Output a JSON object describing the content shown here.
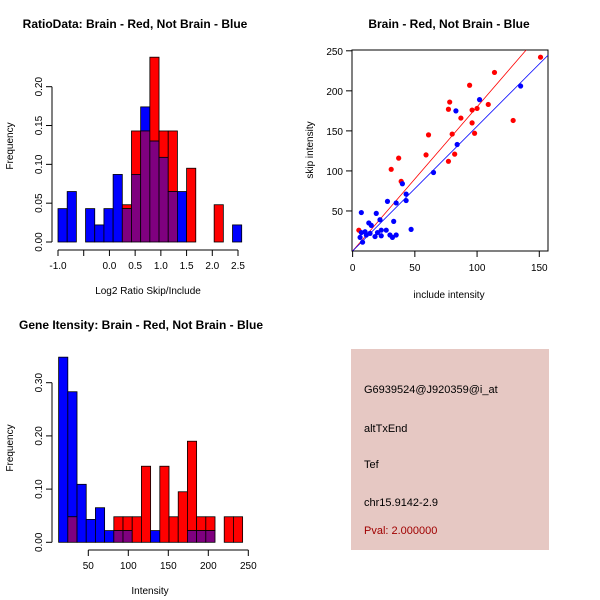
{
  "colors": {
    "red": "#ff0000",
    "blue": "#0000ff",
    "overlap": "#7f007f",
    "info_bg": "#e6c8c3",
    "pval": "#a00000"
  },
  "chart_data": [
    {
      "type": "bar",
      "title": "RatioData: Brain - Red, Not Brain - Blue",
      "xlabel": "Log2 Ratio Skip/Include",
      "ylabel": "Frequency",
      "bin_start": -1.0,
      "bin_width": 0.1786,
      "xticks": [
        -1.0,
        -0.5,
        0.0,
        0.5,
        1.0,
        1.5,
        2.0,
        2.5
      ],
      "xtick_labels": [
        "-1.0",
        "",
        "0.0",
        "0.5",
        "1.0",
        "1.5",
        "2.0",
        "2.5"
      ],
      "yticks": [
        0,
        0.05,
        0.1,
        0.15,
        0.2
      ],
      "ytick_labels": [
        "0.00",
        "0.05",
        "0.10",
        "0.15",
        "0.20"
      ],
      "series": [
        {
          "name": "Not Brain",
          "color": "blue",
          "values": [
            0.043,
            0.065,
            0,
            0.043,
            0.022,
            0.043,
            0.087,
            0.043,
            0.087,
            0.174,
            0.13,
            0.109,
            0.065,
            0.065,
            0,
            0,
            0,
            0,
            0,
            0.022
          ]
        },
        {
          "name": "Brain",
          "color": "red",
          "values": [
            0,
            0,
            0,
            0,
            0,
            0,
            0,
            0.048,
            0.143,
            0.143,
            0.238,
            0.143,
            0.143,
            0,
            0.095,
            0,
            0,
            0.048,
            0,
            0
          ]
        }
      ]
    },
    {
      "type": "scatter",
      "title": "Brain - Red, Not Brain - Blue",
      "xlabel": "include intensity",
      "ylabel": "skip intensity",
      "xlim": [
        -0.5,
        157
      ],
      "ylim": [
        0,
        251
      ],
      "xticks": [
        0,
        50,
        100,
        150
      ],
      "yticks": [
        50,
        100,
        150,
        200,
        250
      ],
      "series": [
        {
          "name": "Brain",
          "color": "red",
          "fit_slope": 1.8,
          "points": [
            [
              5,
              26
            ],
            [
              31,
              102
            ],
            [
              37,
              116
            ],
            [
              39,
              87
            ],
            [
              61,
              145
            ],
            [
              59,
              120
            ],
            [
              77,
              112
            ],
            [
              78,
              186
            ],
            [
              77,
              177
            ],
            [
              80,
              146
            ],
            [
              82,
              121
            ],
            [
              87,
              166
            ],
            [
              94,
              207
            ],
            [
              96,
              176
            ],
            [
              96,
              160
            ],
            [
              98,
              147
            ],
            [
              100,
              178
            ],
            [
              109,
              183
            ],
            [
              114,
              223
            ],
            [
              129,
              163
            ],
            [
              151,
              242
            ]
          ]
        },
        {
          "name": "Not Brain",
          "color": "blue",
          "fit_slope": 1.557,
          "points": [
            [
              7,
              48
            ],
            [
              7,
              23
            ],
            [
              6,
              17
            ],
            [
              8,
              11
            ],
            [
              10,
              24
            ],
            [
              13,
              35
            ],
            [
              15,
              32
            ],
            [
              11,
              20
            ],
            [
              14,
              22
            ],
            [
              18,
              18
            ],
            [
              20,
              23
            ],
            [
              23,
              26
            ],
            [
              23,
              19
            ],
            [
              19,
              47
            ],
            [
              22,
              39
            ],
            [
              28,
              62
            ],
            [
              27,
              26
            ],
            [
              30,
              20
            ],
            [
              32,
              17
            ],
            [
              35,
              20
            ],
            [
              33,
              37
            ],
            [
              35,
              60
            ],
            [
              40,
              84
            ],
            [
              43,
              71
            ],
            [
              43,
              63
            ],
            [
              47,
              27
            ],
            [
              65,
              98
            ],
            [
              84,
              133
            ],
            [
              83,
              175
            ],
            [
              102,
              189
            ],
            [
              135,
              206
            ]
          ]
        }
      ]
    },
    {
      "type": "bar",
      "title": "Gene Itensity: Brain - Red, Not Brain - Blue",
      "xlabel": "Intensity",
      "ylabel": "Frequency",
      "bin_start": 12.9,
      "bin_width": 11.5,
      "xticks": [
        50,
        100,
        150,
        200,
        250
      ],
      "xtick_labels": [
        "50",
        "100",
        "150",
        "200",
        "250"
      ],
      "yticks": [
        0,
        0.1,
        0.2,
        0.3
      ],
      "ytick_labels": [
        "0.00",
        "0.10",
        "0.20",
        "0.30"
      ],
      "series": [
        {
          "name": "Not Brain",
          "color": "blue",
          "values": [
            0.348,
            0.283,
            0.109,
            0.043,
            0.065,
            0.022,
            0.022,
            0.022,
            0,
            0,
            0.022,
            0,
            0,
            0,
            0.022,
            0.022,
            0.022,
            0,
            0,
            0
          ]
        },
        {
          "name": "Brain",
          "color": "red",
          "values": [
            0,
            0.048,
            0,
            0,
            0,
            0,
            0.048,
            0.048,
            0.048,
            0.143,
            0,
            0.143,
            0.048,
            0.095,
            0.19,
            0.048,
            0.048,
            0,
            0.048,
            0.048
          ]
        }
      ]
    }
  ],
  "info": {
    "probe": "G6939524@J920359@i_at",
    "event": "altTxEnd",
    "gene": "Tef",
    "location": "chr15.9142-2.9",
    "pval": "Pval: 2.000000"
  }
}
